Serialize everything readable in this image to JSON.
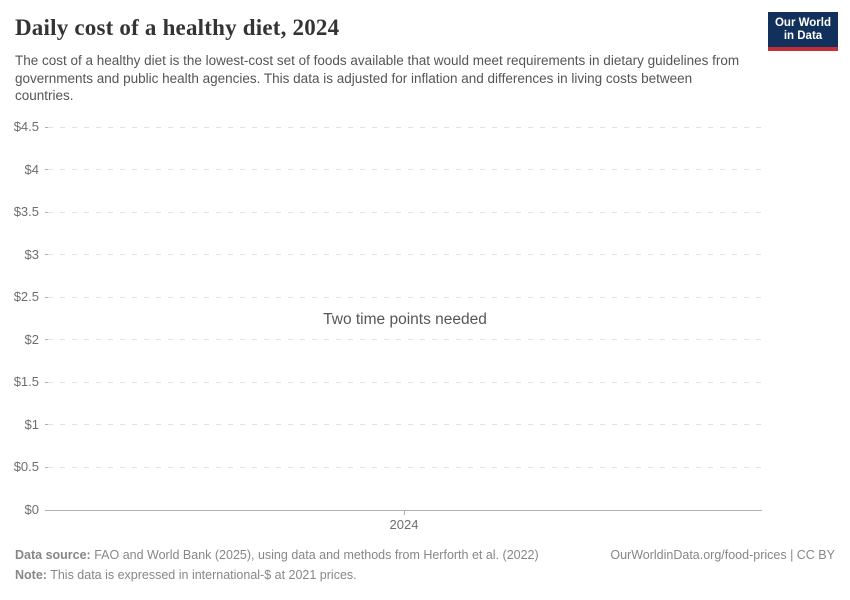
{
  "header": {
    "title": "Daily cost of a healthy diet, 2024",
    "subtitle": "The cost of a healthy diet is the lowest-cost set of foods available that would meet requirements in dietary guidelines from governments and public health agencies. This data is adjusted for inflation and differences in living costs between countries.",
    "logo_line1": "Our World",
    "logo_line2": "in Data"
  },
  "chart_data": {
    "type": "line",
    "title": "Daily cost of a healthy diet, 2024",
    "message": "Two time points needed",
    "series": [],
    "x_categories": [
      "2024"
    ],
    "ylim": [
      0,
      4.5
    ],
    "ytick_values": [
      0,
      0.5,
      1,
      1.5,
      2,
      2.5,
      3,
      3.5,
      4,
      4.5
    ],
    "ytick_labels": [
      "$0",
      "$0.5",
      "$1",
      "$1.5",
      "$2",
      "$2.5",
      "$3",
      "$3.5",
      "$4",
      "$4.5"
    ],
    "ylabel": "",
    "xlabel": "",
    "grid": "horizontal-dashed",
    "legend": "none"
  },
  "footer": {
    "source_label": "Data source:",
    "source_text": "FAO and World Bank (2025), using data and methods from Herforth et al. (2022)",
    "note_label": "Note:",
    "note_text": "This data is expressed in international-$ at 2021 prices.",
    "license": "OurWorldinData.org/food-prices | CC BY"
  },
  "colors": {
    "background": "#ffffff",
    "title_text": "#343434",
    "subtitle_text": "#555555",
    "axis_label_text": "#6e6e6e",
    "gridline": "#e2e2e2",
    "axis_line": "#b0b0b0",
    "message_text": "#565656",
    "footer_text": "#878787",
    "logo_background": "#12305c",
    "logo_bar": "#c32f39"
  }
}
